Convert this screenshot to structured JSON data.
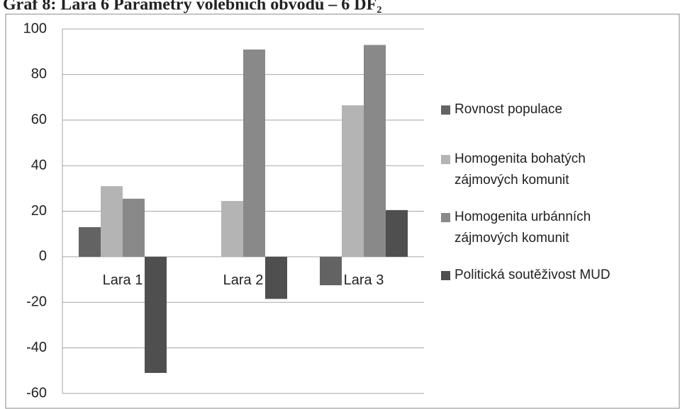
{
  "chart_data": {
    "type": "bar",
    "title": "Graf 8: Lara 6 Parametry volebních obvodů – 6 DF₂",
    "categories": [
      "Lara 1",
      "Lara 2",
      "Lara 3"
    ],
    "series": [
      {
        "name": "Rovnost populace",
        "color": "#636363",
        "values": [
          13,
          0,
          -12.5
        ]
      },
      {
        "name": "Homogenita bohatých zájmových komunit",
        "color": "#b4b4b4",
        "values": [
          31,
          24.5,
          66.5
        ]
      },
      {
        "name": "Homogenita urbánních zájmových komunit",
        "color": "#898989",
        "values": [
          25.5,
          91,
          93
        ]
      },
      {
        "name": "Politická soutěživost MUD",
        "color": "#4f4f4f",
        "values": [
          -51,
          -18.5,
          20.5
        ]
      }
    ],
    "ylim": [
      -60,
      100
    ],
    "yticks": [
      -60,
      -40,
      -20,
      0,
      20,
      40,
      60,
      80,
      100
    ],
    "grid": true,
    "legend": "right"
  }
}
